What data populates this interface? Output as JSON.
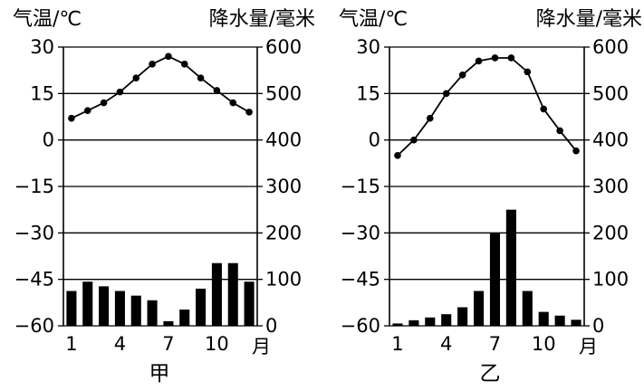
{
  "chart_data": [
    {
      "type": "bar+line",
      "caption": "甲",
      "y_left_label": "气温/℃",
      "y_right_label": "降水量/毫米",
      "x_unit_label": "月",
      "x_tick_labels": [
        "1",
        "4",
        "7",
        "10"
      ],
      "y_left_ticks": [
        "30",
        "15",
        "0",
        "−15",
        "−30",
        "−45",
        "−60"
      ],
      "y_right_ticks": [
        "600",
        "500",
        "400",
        "300",
        "200",
        "100",
        "0"
      ],
      "y_left_range": [
        -60,
        30
      ],
      "y_right_range": [
        0,
        600
      ],
      "months": [
        1,
        2,
        3,
        4,
        5,
        6,
        7,
        8,
        9,
        10,
        11,
        12
      ],
      "temperature": [
        7,
        9.5,
        12,
        15.5,
        20,
        24.5,
        27,
        24.5,
        20,
        16,
        12,
        9
      ],
      "precipitation": [
        75,
        95,
        85,
        75,
        65,
        55,
        10,
        35,
        80,
        135,
        135,
        95
      ],
      "line_color": "#000000",
      "bar_color": "#000000"
    },
    {
      "type": "bar+line",
      "caption": "乙",
      "y_left_label": "气温/℃",
      "y_right_label": "降水量/毫米",
      "x_unit_label": "月",
      "x_tick_labels": [
        "1",
        "4",
        "7",
        "10"
      ],
      "y_left_ticks": [
        "30",
        "15",
        "0",
        "−15",
        "−30",
        "−45",
        "−60"
      ],
      "y_right_ticks": [
        "600",
        "500",
        "400",
        "300",
        "200",
        "100",
        "0"
      ],
      "y_left_range": [
        -60,
        30
      ],
      "y_right_range": [
        0,
        600
      ],
      "months": [
        1,
        2,
        3,
        4,
        5,
        6,
        7,
        8,
        9,
        10,
        11,
        12
      ],
      "temperature": [
        -5,
        0,
        7,
        15,
        21,
        25.5,
        26.5,
        26.5,
        22,
        10,
        3,
        -3.5
      ],
      "precipitation": [
        5,
        12,
        18,
        25,
        40,
        75,
        200,
        250,
        75,
        30,
        22,
        13
      ],
      "line_color": "#000000",
      "bar_color": "#000000"
    }
  ]
}
